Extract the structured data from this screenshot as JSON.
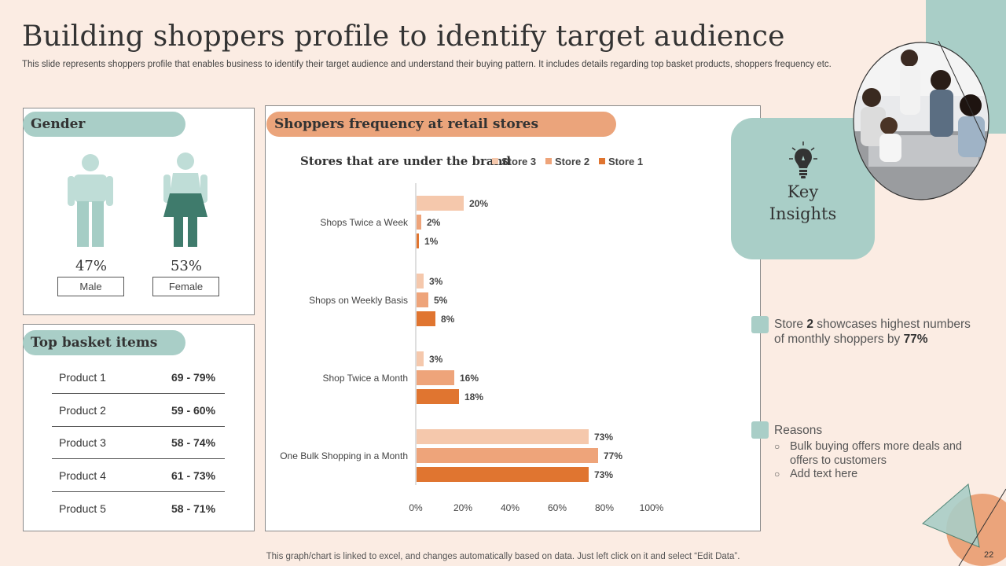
{
  "title": "Building shoppers profile to identify target audience",
  "subtitle": "This slide represents shoppers profile that enables business to identify their target audience and understand their buying pattern. It includes details regarding top basket products, shoppers frequency etc.",
  "gender": {
    "heading": "Gender",
    "male_pct": "47%",
    "female_pct": "53%",
    "male_label": "Male",
    "female_label": "Female"
  },
  "basket": {
    "heading": "Top basket items",
    "items": [
      {
        "name": "Product 1",
        "value": "69 - 79%"
      },
      {
        "name": "Product 2",
        "value": "59 - 60%"
      },
      {
        "name": "Product 3",
        "value": "58 - 74%"
      },
      {
        "name": "Product 4",
        "value": "61 - 73%"
      },
      {
        "name": "Product 5",
        "value": "58 - 71%"
      }
    ]
  },
  "frequency": {
    "heading": "Shoppers frequency at retail stores"
  },
  "chart_data": {
    "type": "bar",
    "orientation": "horizontal",
    "title": "",
    "legend_title": "Stores that are under the brand",
    "legend_position": "top",
    "categories": [
      "Shops Twice a Week",
      "Shops on Weekly Basis",
      "Shop Twice a Month",
      "One Bulk Shopping in a Month"
    ],
    "series": [
      {
        "name": "Store 3",
        "color": "#f5c8ac",
        "values": [
          20,
          3,
          3,
          73
        ]
      },
      {
        "name": "Store 2",
        "color": "#eea47a",
        "values": [
          2,
          5,
          16,
          77
        ]
      },
      {
        "name": "Store 1",
        "color": "#e07530",
        "values": [
          1,
          8,
          18,
          73
        ]
      }
    ],
    "xlim": [
      0,
      100
    ],
    "xticks": [
      "0%",
      "20%",
      "40%",
      "60%",
      "80%",
      "100%"
    ],
    "value_suffix": "%",
    "grid": false
  },
  "insights": {
    "title_line1": "Key",
    "title_line2": "Insights",
    "point1_pre": "Store ",
    "point1_bold1": "2",
    "point1_mid": " showcases highest numbers of monthly shoppers by ",
    "point1_bold2": "77%",
    "point2_heading": "Reasons",
    "bullets": [
      "Bulk buying offers more deals and offers to customers",
      "Add text here"
    ]
  },
  "footer": "This graph/chart is linked to excel, and changes automatically based on data. Just left click on it and select “Edit Data”.",
  "page_number": "22",
  "colors": {
    "teal": "#a9cec7",
    "dark_teal": "#3f7b6c",
    "orange": "#eba47b",
    "background": "#fbece3"
  },
  "icons": [
    "male-person-icon",
    "female-person-icon",
    "lightbulb-icon",
    "team-photo"
  ]
}
